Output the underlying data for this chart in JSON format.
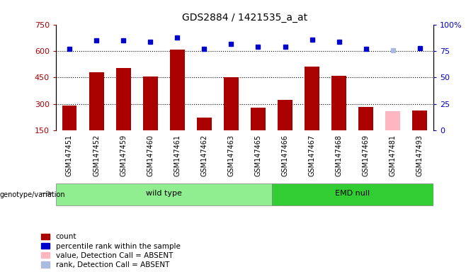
{
  "title": "GDS2884 / 1421535_a_at",
  "samples": [
    "GSM147451",
    "GSM147452",
    "GSM147459",
    "GSM147460",
    "GSM147461",
    "GSM147462",
    "GSM147463",
    "GSM147465",
    "GSM147466",
    "GSM147467",
    "GSM147468",
    "GSM147469",
    "GSM147481",
    "GSM147493"
  ],
  "counts": [
    290,
    480,
    505,
    455,
    610,
    225,
    450,
    280,
    325,
    510,
    460,
    285,
    260,
    265
  ],
  "ranks": [
    77,
    85,
    85,
    84,
    88,
    77,
    82,
    79,
    79,
    86,
    84,
    77,
    76,
    78
  ],
  "absent_value_idx": [
    12
  ],
  "absent_rank_idx": [
    12
  ],
  "groups": [
    {
      "label": "wild type",
      "start": 0,
      "end": 7,
      "color": "#90EE90"
    },
    {
      "label": "EMD null",
      "start": 8,
      "end": 13,
      "color": "#32CD32"
    }
  ],
  "bar_color_normal": "#AA0000",
  "bar_color_absent": "#FFB6C1",
  "rank_color_normal": "#0000CC",
  "rank_color_absent": "#AABBDD",
  "ylim_left": [
    150,
    750
  ],
  "ylim_right": [
    0,
    100
  ],
  "yticks_left": [
    150,
    300,
    450,
    600,
    750
  ],
  "yticks_right": [
    0,
    25,
    50,
    75,
    100
  ],
  "grid_values": [
    300,
    450,
    600
  ],
  "tick_bg_color": "#C8C8C8",
  "plot_bg": "#FFFFFF",
  "fig_bg": "#FFFFFF"
}
